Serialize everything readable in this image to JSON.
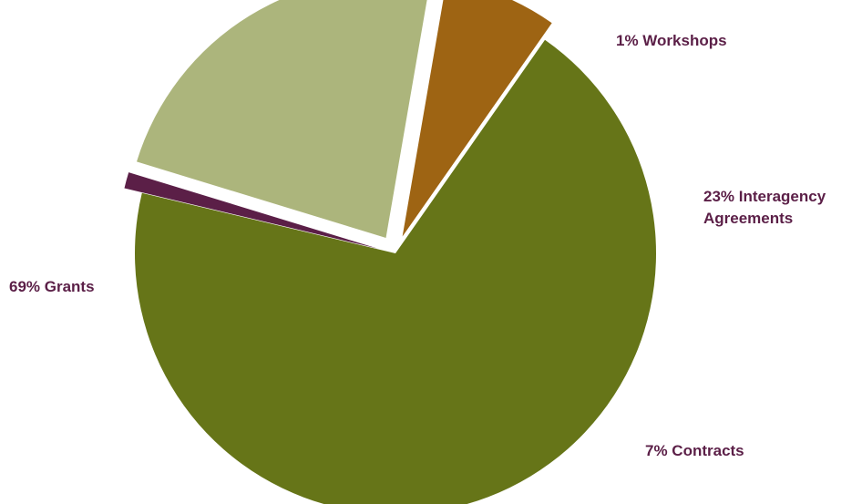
{
  "chart_data": {
    "type": "pie",
    "title": "",
    "start_angle_deg": 35,
    "direction": "clockwise",
    "exploded": true,
    "legend": "none",
    "label_color": "#5b1f47",
    "slices": [
      {
        "name": "Grants",
        "value": 69,
        "label_lines": [
          "69% Grants"
        ],
        "color": "#667518"
      },
      {
        "name": "Workshops",
        "value": 1,
        "label_lines": [
          "1% Workshops"
        ],
        "color": "#5b1f47"
      },
      {
        "name": "Interagency Agreements",
        "value": 23,
        "label_lines": [
          "23% Interagency",
          "Agreements"
        ],
        "color": "#acb57c"
      },
      {
        "name": "Contracts",
        "value": 7,
        "label_lines": [
          "7% Contracts"
        ],
        "color": "#9e6413"
      }
    ]
  }
}
